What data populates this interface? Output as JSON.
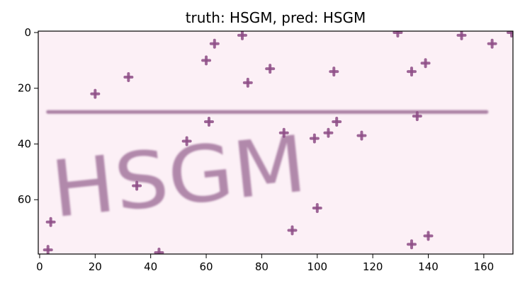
{
  "chart_data": {
    "type": "image",
    "title": "truth: HSGM, pred: HSGM",
    "image_text": "HSGM",
    "xlim": [
      -0.5,
      170.5
    ],
    "ylim": [
      79.5,
      -0.5
    ],
    "x_ticks": [
      0,
      20,
      40,
      60,
      80,
      100,
      120,
      140,
      160
    ],
    "y_ticks": [
      0,
      20,
      40,
      60
    ],
    "background_color": "#fcf0f6",
    "stroke_color": "#a97ea3",
    "noise_color": "#8e4d86",
    "noise_points": [
      {
        "x": 3,
        "y": 78
      },
      {
        "x": 4,
        "y": 68
      },
      {
        "x": 20,
        "y": 22
      },
      {
        "x": 32,
        "y": 16
      },
      {
        "x": 35,
        "y": 55
      },
      {
        "x": 43,
        "y": 79
      },
      {
        "x": 53,
        "y": 39
      },
      {
        "x": 60,
        "y": 10
      },
      {
        "x": 61,
        "y": 32
      },
      {
        "x": 63,
        "y": 4
      },
      {
        "x": 73,
        "y": 1
      },
      {
        "x": 75,
        "y": 18
      },
      {
        "x": 83,
        "y": 13
      },
      {
        "x": 88,
        "y": 36
      },
      {
        "x": 91,
        "y": 71
      },
      {
        "x": 99,
        "y": 38
      },
      {
        "x": 100,
        "y": 63
      },
      {
        "x": 104,
        "y": 36
      },
      {
        "x": 106,
        "y": 14
      },
      {
        "x": 107,
        "y": 32
      },
      {
        "x": 116,
        "y": 37
      },
      {
        "x": 129,
        "y": 0
      },
      {
        "x": 134,
        "y": 76
      },
      {
        "x": 134,
        "y": 14
      },
      {
        "x": 136,
        "y": 30
      },
      {
        "x": 139,
        "y": 11
      },
      {
        "x": 140,
        "y": 73
      },
      {
        "x": 152,
        "y": 1
      },
      {
        "x": 163,
        "y": 4
      },
      {
        "x": 170,
        "y": 0
      }
    ],
    "strike_line": {
      "x_start": 3,
      "x_end": 161,
      "y": 28.5
    }
  }
}
